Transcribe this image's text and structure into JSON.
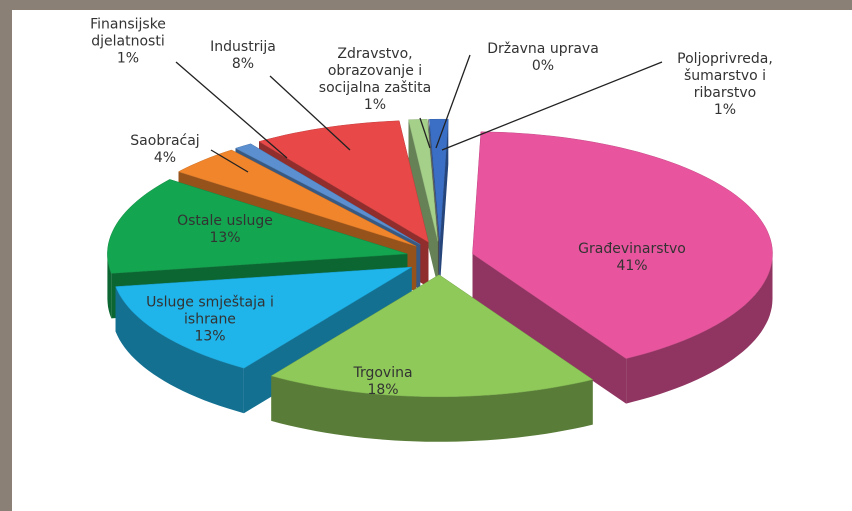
{
  "chart_data": {
    "type": "pie",
    "categories": [
      "Poljoprivreda, šumarstvo i ribarstvo",
      "Građevinarstvo",
      "Trgovina",
      "Usluge smještaja i ishrane",
      "Ostale usluge",
      "Saobraćaj",
      "Finansijske djelatnosti",
      "Industrija",
      "Zdravstvo, obrazovanje i socijalna zaštita",
      "Državna uprava"
    ],
    "values": [
      1,
      41,
      18,
      13,
      13,
      4,
      1,
      8,
      1,
      0
    ],
    "value_labels": [
      "1%",
      "41%",
      "18%",
      "13%",
      "13%",
      "4%",
      "1%",
      "8%",
      "1%",
      "0%"
    ],
    "colors": [
      "#3b6fc6",
      "#e8559e",
      "#8fc95a",
      "#1fb4ea",
      "#14a550",
      "#f0852c",
      "#5b8fd0",
      "#e84848",
      "#a5d08a",
      "#7a7a7a"
    ]
  }
}
